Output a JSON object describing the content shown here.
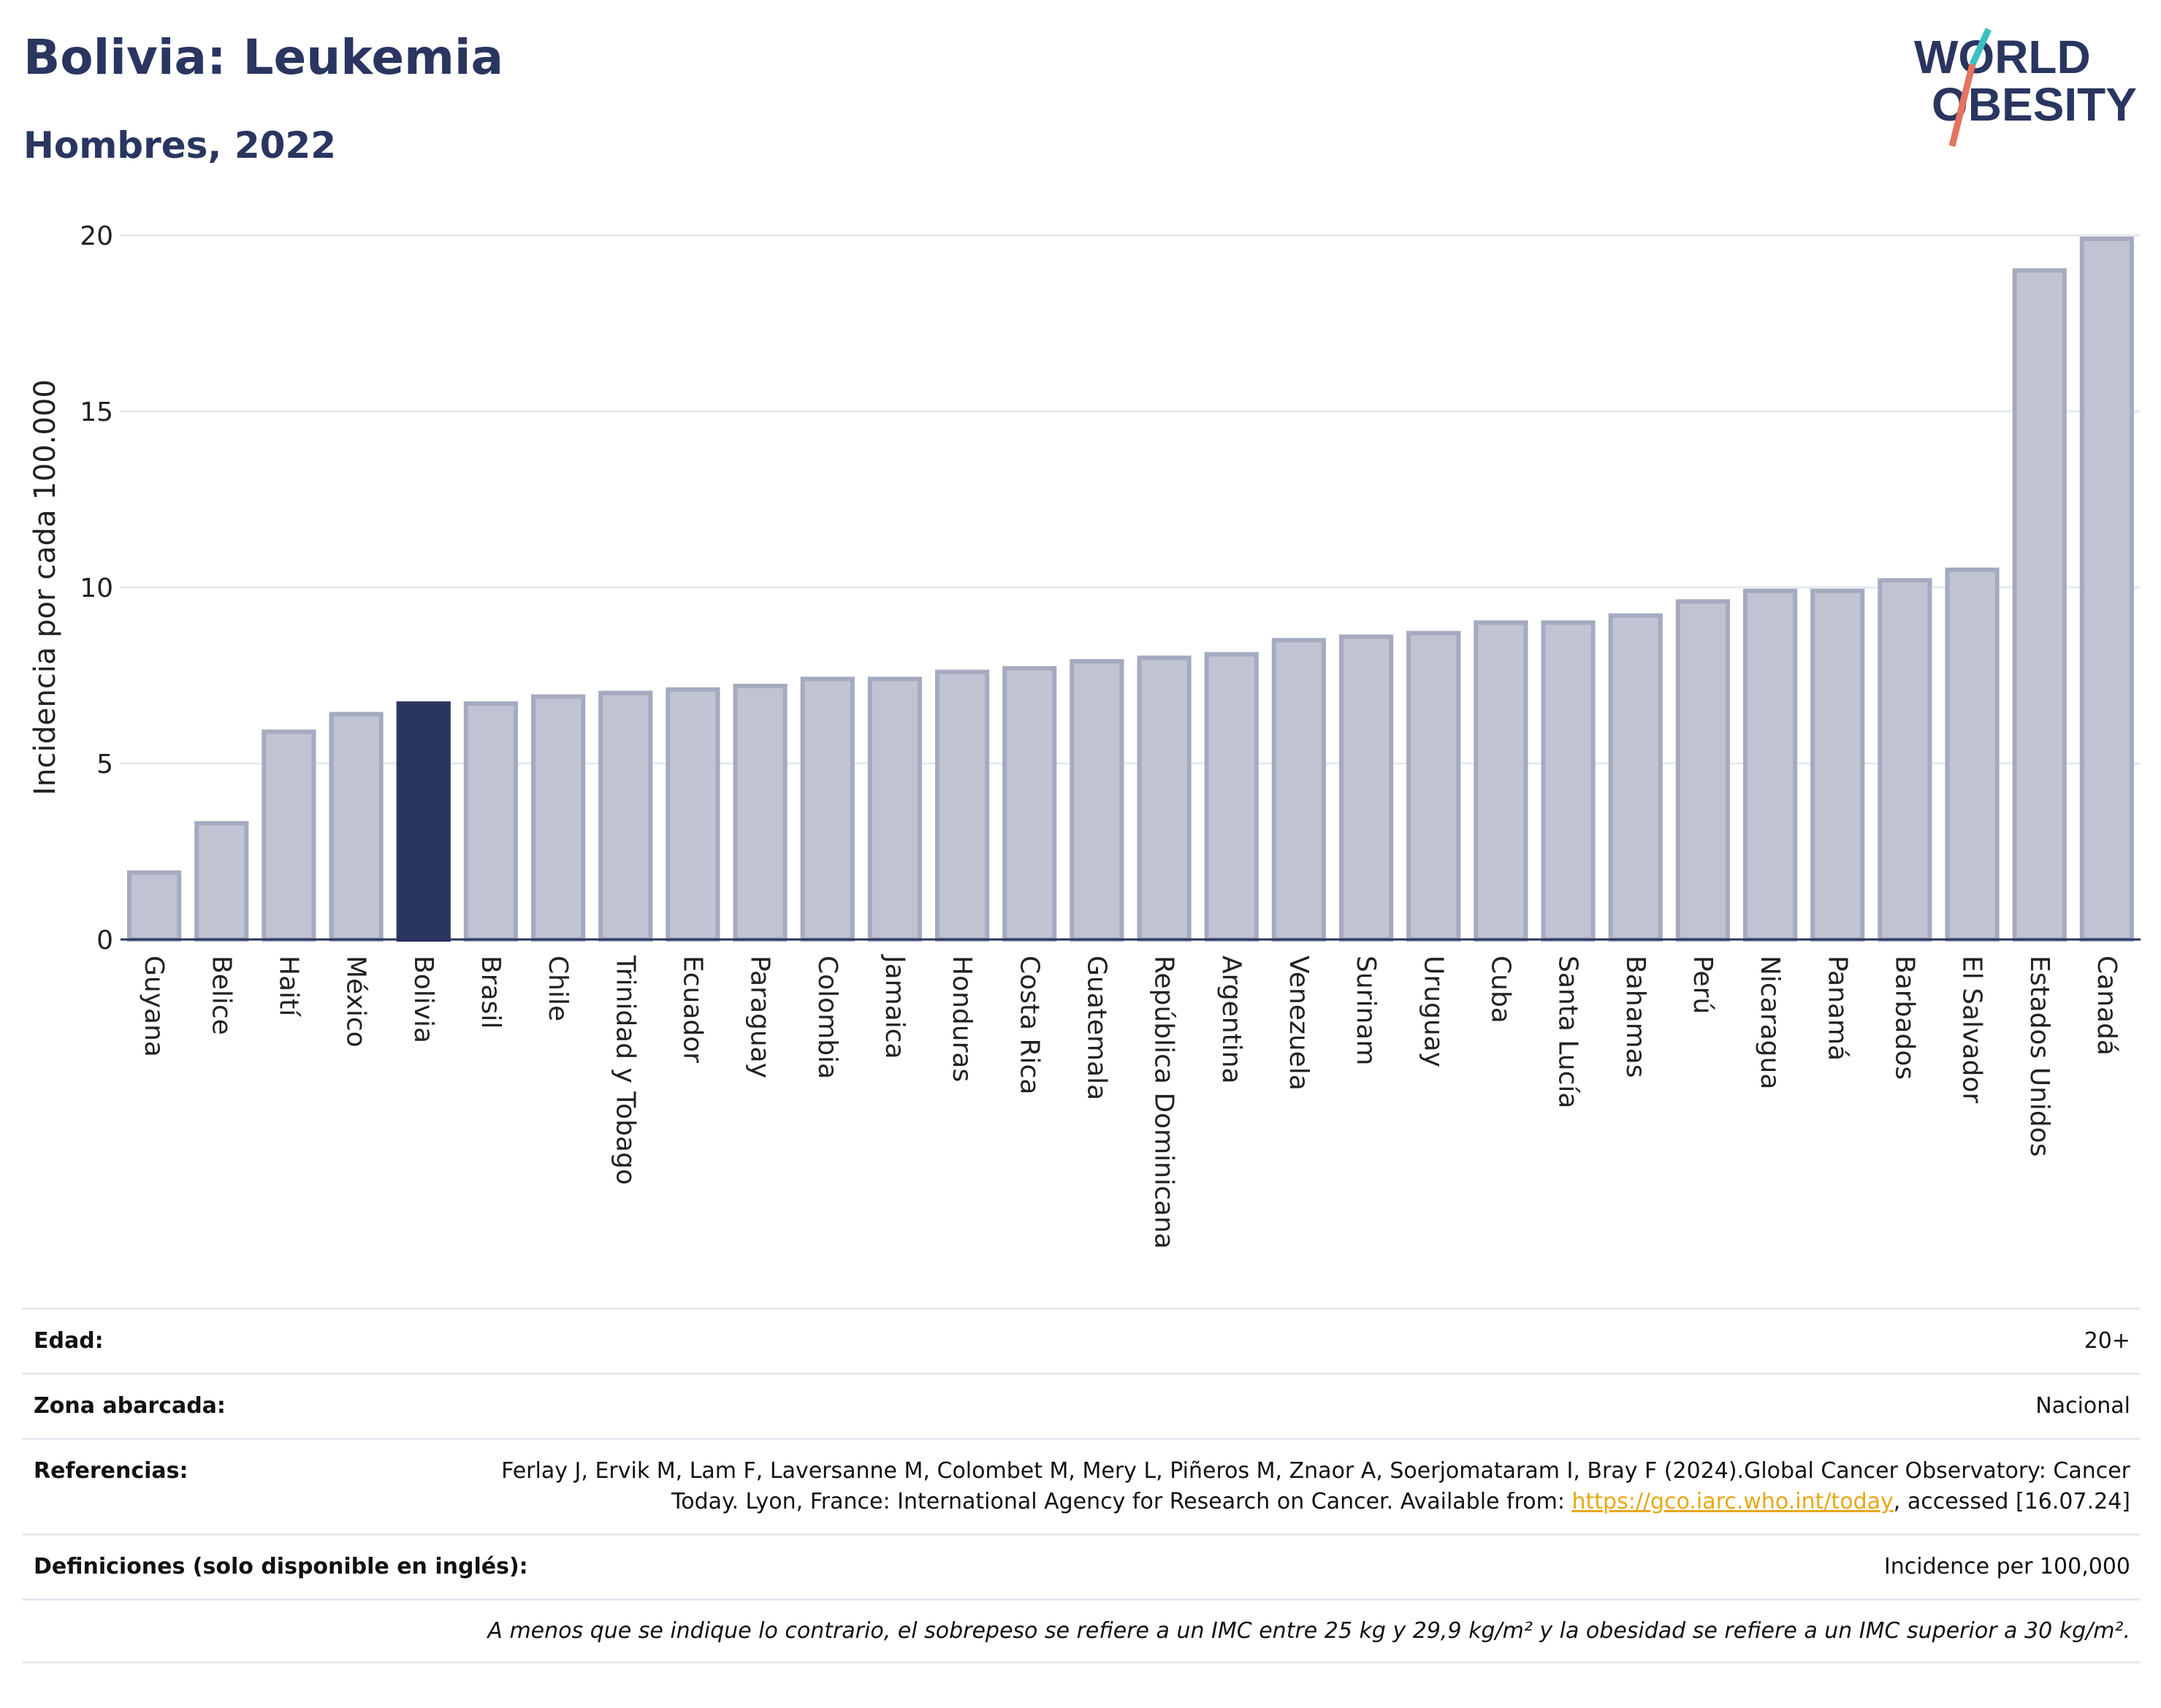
{
  "title": "Bolivia: Leukemia",
  "subtitle": "Hombres, 2022",
  "logo": {
    "line1": "WORLD",
    "line2": "OBESITY"
  },
  "colors": {
    "highlight": "#2a3560",
    "bar_fill": "#c0c4d2",
    "bar_stroke": "#a5aabf",
    "grid": "#e6e9f0",
    "link": "#e6a817",
    "logo_slash_top": "#3bbfc0",
    "logo_slash_bottom": "#e5735f"
  },
  "chart_data": {
    "type": "bar",
    "ylabel": "Incidencia por cada 100.000",
    "ylim": [
      0,
      20
    ],
    "yticks": [
      0,
      5,
      10,
      15,
      20
    ],
    "highlight": "Bolivia",
    "categories": [
      "Guyana",
      "Belice",
      "Haití",
      "México",
      "Bolivia",
      "Brasil",
      "Chile",
      "Trinidad y Tobago",
      "Ecuador",
      "Paraguay",
      "Colombia",
      "Jamaica",
      "Honduras",
      "Costa Rica",
      "Guatemala",
      "República Dominicana",
      "Argentina",
      "Venezuela",
      "Surinam",
      "Uruguay",
      "Cuba",
      "Santa Lucía",
      "Bahamas",
      "Perú",
      "Nicaragua",
      "Panamá",
      "Barbados",
      "El Salvador",
      "Estados Unidos",
      "Canadá"
    ],
    "values": [
      1.9,
      3.3,
      5.9,
      6.4,
      6.7,
      6.7,
      6.9,
      7.0,
      7.1,
      7.2,
      7.4,
      7.4,
      7.6,
      7.7,
      7.9,
      8.0,
      8.1,
      8.5,
      8.6,
      8.7,
      9.0,
      9.0,
      9.2,
      9.6,
      9.9,
      9.9,
      10.2,
      10.5,
      19.0,
      19.9
    ]
  },
  "meta": {
    "edad_label": "Edad:",
    "edad_value": "20+",
    "zona_label": "Zona abarcada:",
    "zona_value": "Nacional",
    "ref_label": "Referencias:",
    "ref_text_1": "Ferlay J, Ervik M, Lam F, Laversanne M, Colombet M, Mery L, Piñeros M, Znaor A, Soerjomataram I, Bray F (2024).Global Cancer Observatory: Cancer Today. Lyon, France: International Agency for Research on Cancer. Available from: ",
    "ref_link": "https://gco.iarc.who.int/today",
    "ref_text_2": ", accessed [16.07.24]",
    "def_label": "Definiciones (solo disponible en inglés):",
    "def_value": "Incidence per 100,000",
    "note": "A menos que se indique lo contrario, el sobrepeso se refiere a un IMC entre 25 kg y 29,9 kg/m² y la obesidad se refiere a un IMC superior a 30 kg/m²."
  }
}
